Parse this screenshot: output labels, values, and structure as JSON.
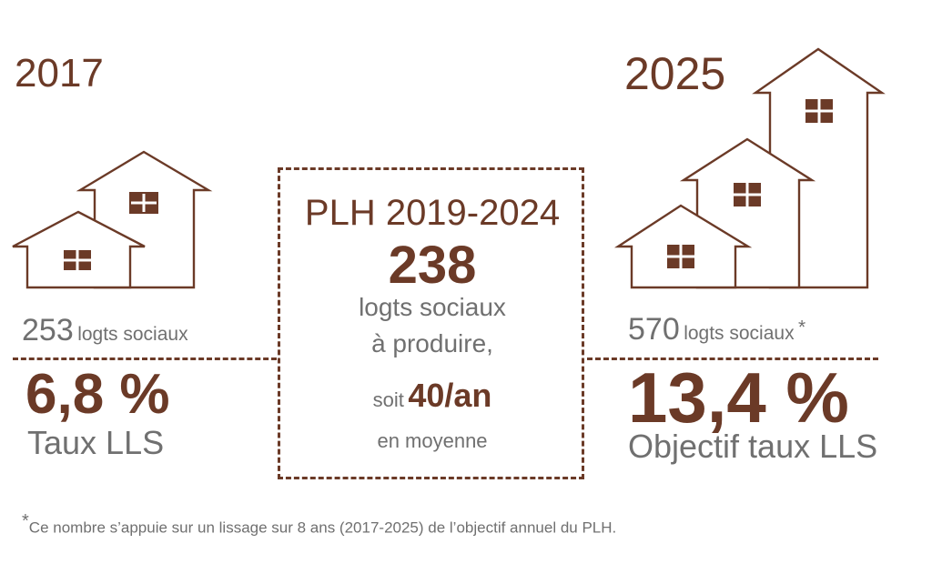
{
  "left": {
    "year": "2017",
    "count": "253",
    "count_label": "logts sociaux",
    "percent": "6,8 %",
    "percent_label": "Taux LLS",
    "house_icon": "two-houses-icon"
  },
  "center": {
    "title": "PLH 2019-2024",
    "number": "238",
    "line1": "logts sociaux",
    "line2": "à produire,",
    "soit": "soit",
    "per_year": "40/an",
    "line4": "en moyenne"
  },
  "right": {
    "year": "2025",
    "count": "570",
    "count_label": "logts sociaux",
    "asterisk": "*",
    "percent": "13,4 %",
    "percent_label": "Objectif taux LLS",
    "house_icon": "three-houses-icon"
  },
  "footnote": {
    "star": "*",
    "text": "Ce nombre s’appuie sur un lissage sur 8 ans (2017-2025) de l’objectif annuel du PLH."
  },
  "colors": {
    "accent": "#6b3a27",
    "grey": "#707070"
  }
}
